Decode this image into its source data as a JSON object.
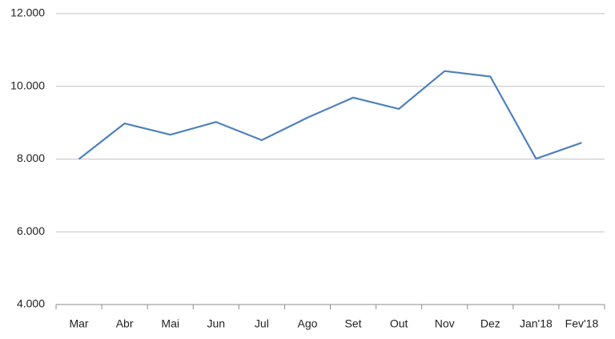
{
  "chart_data": {
    "type": "line",
    "categories": [
      "Mar",
      "Abr",
      "Mai",
      "Jun",
      "Jul",
      "Ago",
      "Set",
      "Out",
      "Nov",
      "Dez",
      "Jan'18",
      "Fev'18"
    ],
    "values": [
      8000,
      8980,
      8670,
      9020,
      8520,
      9140,
      9690,
      9380,
      10420,
      10270,
      8010,
      8450
    ],
    "color": "#4f81bd",
    "ylim": [
      4000,
      12000
    ],
    "yticks": [
      {
        "value": 4000,
        "label": "4.000"
      },
      {
        "value": 6000,
        "label": "6.000"
      },
      {
        "value": 8000,
        "label": "8.000"
      },
      {
        "value": 10000,
        "label": "10.000"
      },
      {
        "value": 12000,
        "label": "12.000"
      }
    ],
    "grid": true
  }
}
